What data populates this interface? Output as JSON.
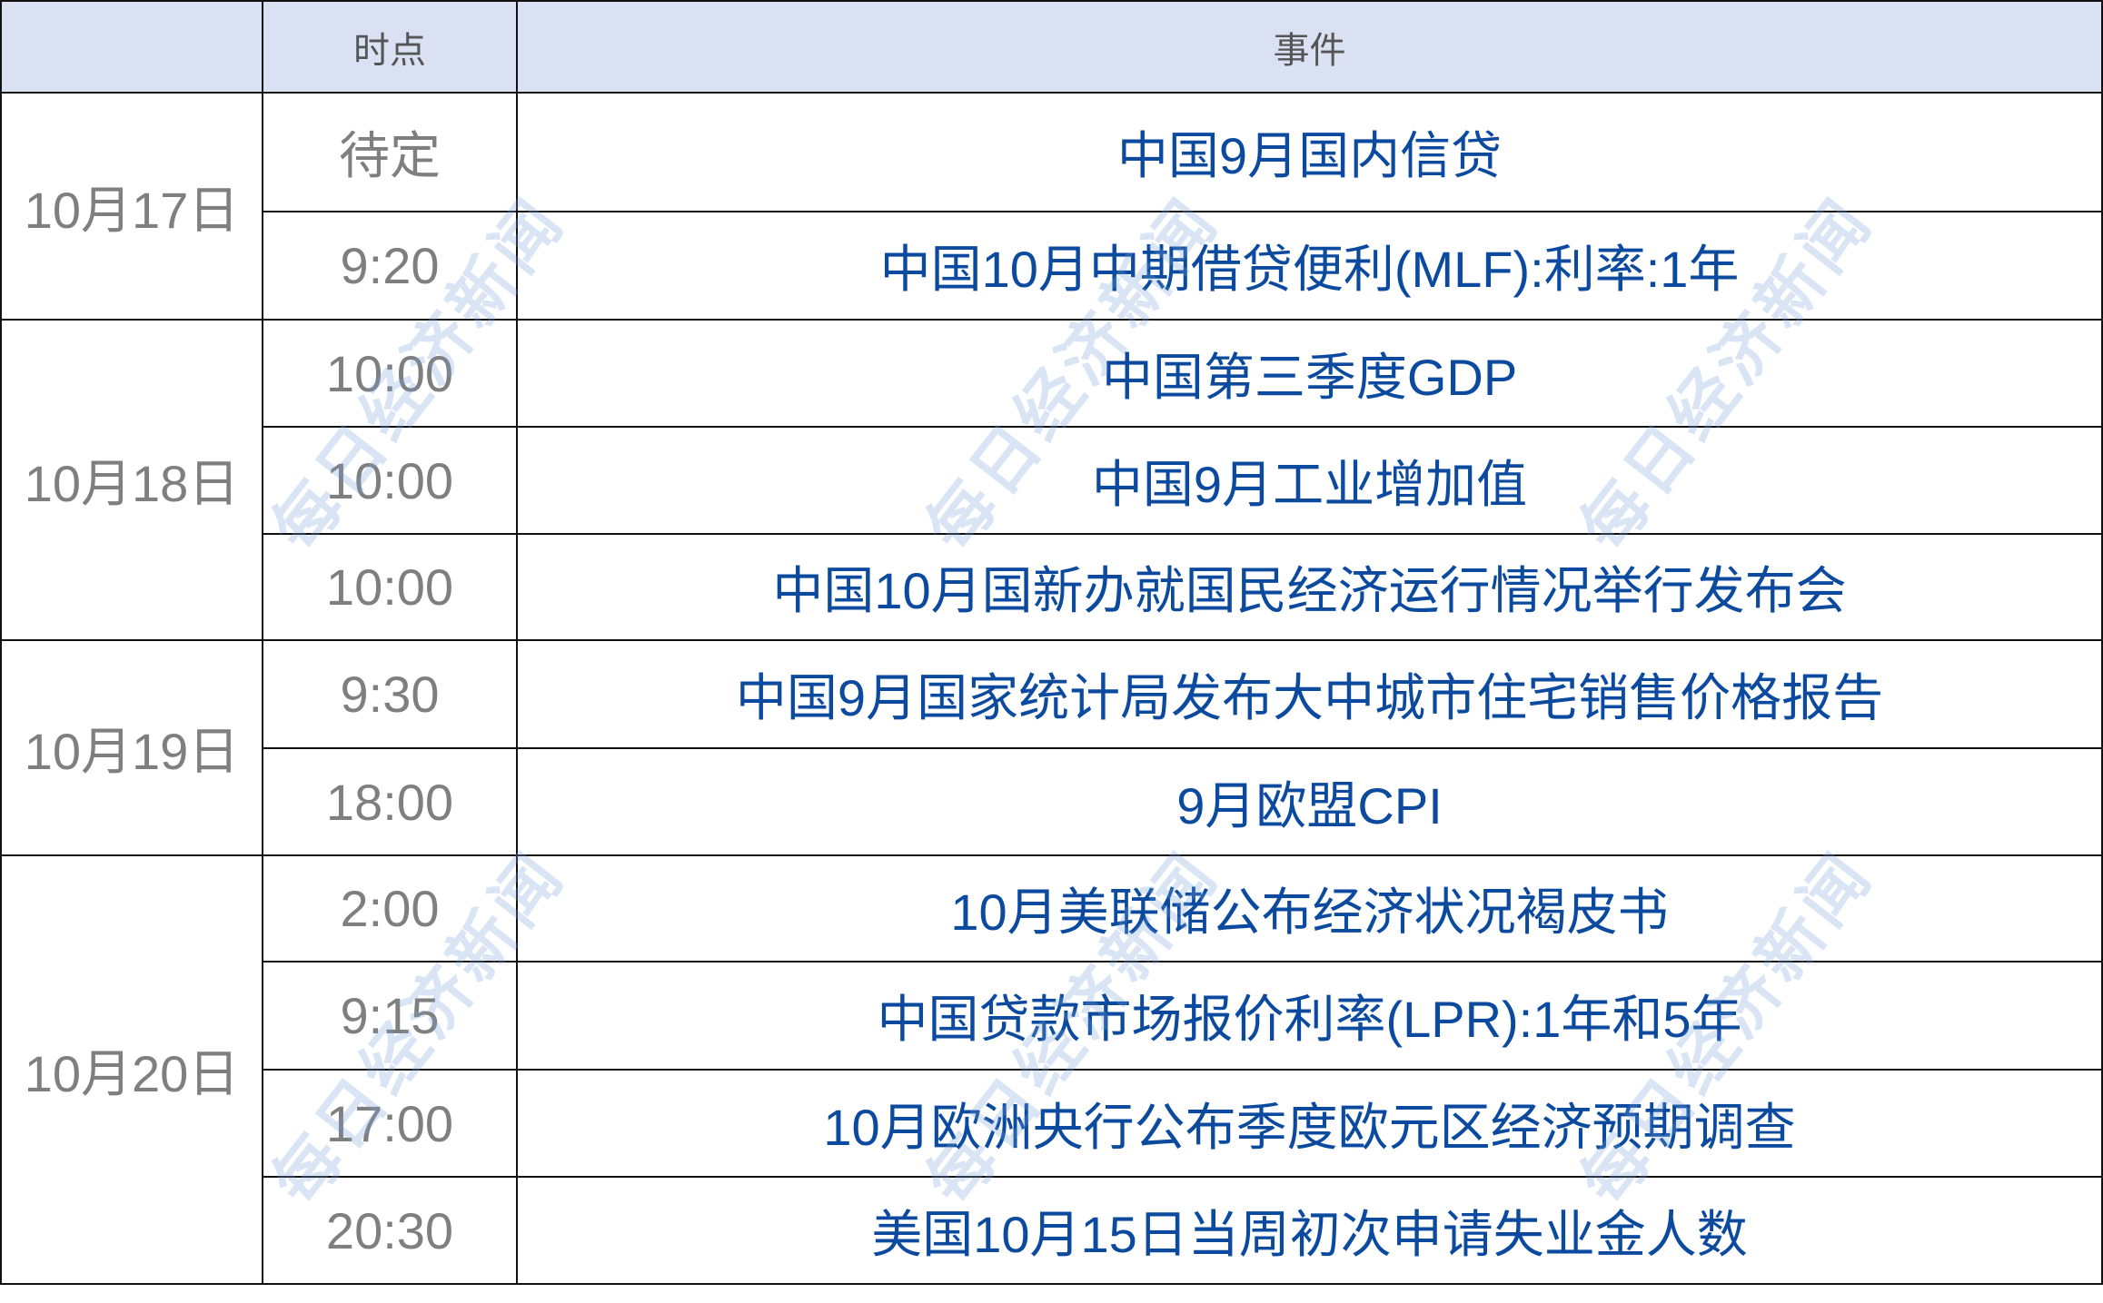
{
  "header": {
    "col_date": "",
    "col_time": "时点",
    "col_event": "事件"
  },
  "groups": [
    {
      "date": "10月17日",
      "rows": [
        {
          "time": "待定",
          "event": "中国9月国内信贷"
        },
        {
          "time": "9:20",
          "event": "中国10月中期借贷便利(MLF):利率:1年"
        }
      ]
    },
    {
      "date": "10月18日",
      "rows": [
        {
          "time": "10:00",
          "event": "中国第三季度GDP"
        },
        {
          "time": "10:00",
          "event": "中国9月工业增加值"
        },
        {
          "time": "10:00",
          "event": "中国10月国新办就国民经济运行情况举行发布会"
        }
      ]
    },
    {
      "date": "10月19日",
      "rows": [
        {
          "time": "9:30",
          "event": "中国9月国家统计局发布大中城市住宅销售价格报告"
        },
        {
          "time": "18:00",
          "event": "9月欧盟CPI"
        }
      ]
    },
    {
      "date": "10月20日",
      "rows": [
        {
          "time": "2:00",
          "event": "10月美联储公布经济状况褐皮书"
        },
        {
          "time": "9:15",
          "event": "中国贷款市场报价利率(LPR):1年和5年"
        },
        {
          "time": "17:00",
          "event": "10月欧洲央行公布季度欧元区经济预期调查"
        },
        {
          "time": "20:30",
          "event": "美国10月15日当周初次申请失业金人数"
        }
      ]
    }
  ],
  "watermark": "每日经济新闻",
  "colors": {
    "header_bg": "#dae1f3",
    "event_text": "#0b4a9e",
    "muted_text": "#7f7f7f"
  }
}
